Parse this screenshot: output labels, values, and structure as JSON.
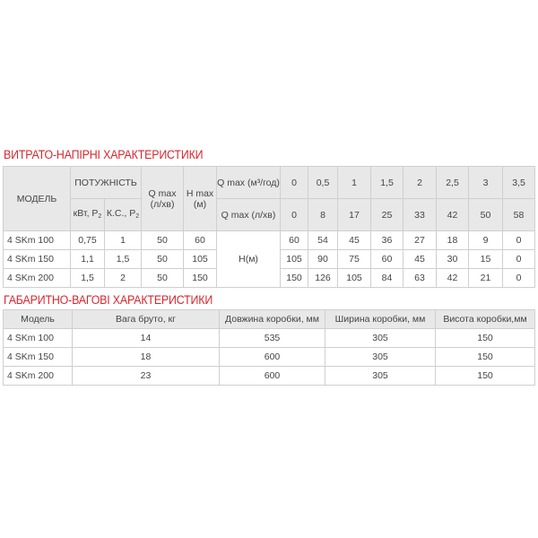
{
  "section1": {
    "title": "ВИТРАТО-НАПІРНІ ХАРАКТЕРИСТИКИ",
    "headers": {
      "model": "МОДЕЛЬ",
      "power": "ПОТУЖНІСТЬ",
      "kw": "кВт, P",
      "hp": "К.С., P",
      "sub": "2",
      "qmax": "Q max (л/хв)",
      "hmax": "H max (м)",
      "q_m3": "Q max (м³/год)",
      "q_lmin": "Q max (л/хв)",
      "head": "H(м)"
    },
    "q_m3_values": [
      "0",
      "0,5",
      "1",
      "1,5",
      "2",
      "2,5",
      "3",
      "3,5"
    ],
    "q_lmin_values": [
      "0",
      "8",
      "17",
      "25",
      "33",
      "42",
      "50",
      "58"
    ],
    "rows": [
      {
        "model": "4 SKm 100",
        "kw": "0,75",
        "hp": "1",
        "qmax": "50",
        "hmax": "60",
        "h": [
          "60",
          "54",
          "45",
          "36",
          "27",
          "18",
          "9",
          "0"
        ]
      },
      {
        "model": "4 SKm 150",
        "kw": "1,1",
        "hp": "1,5",
        "qmax": "50",
        "hmax": "105",
        "h": [
          "105",
          "90",
          "75",
          "60",
          "45",
          "30",
          "15",
          "0"
        ]
      },
      {
        "model": "4 SKm 200",
        "kw": "1,5",
        "hp": "2",
        "qmax": "50",
        "hmax": "150",
        "h": [
          "150",
          "126",
          "105",
          "84",
          "63",
          "42",
          "21",
          "0"
        ]
      }
    ]
  },
  "section2": {
    "title": "ГАБАРИТНО-ВАГОВІ ХАРАКТЕРИСТИКИ",
    "headers": [
      "Модель",
      "Вага бруто, кг",
      "Довжина коробки, мм",
      "Ширина коробки, мм",
      "Висота коробки,мм"
    ],
    "rows": [
      [
        "4 SKm 100",
        "14",
        "535",
        "305",
        "150"
      ],
      [
        "4 SKm 150",
        "18",
        "600",
        "305",
        "150"
      ],
      [
        "4 SKm 200",
        "23",
        "600",
        "305",
        "150"
      ]
    ]
  },
  "colors": {
    "title": "#d9262e",
    "header_bg": "#e8e8e8",
    "text": "#444444"
  }
}
